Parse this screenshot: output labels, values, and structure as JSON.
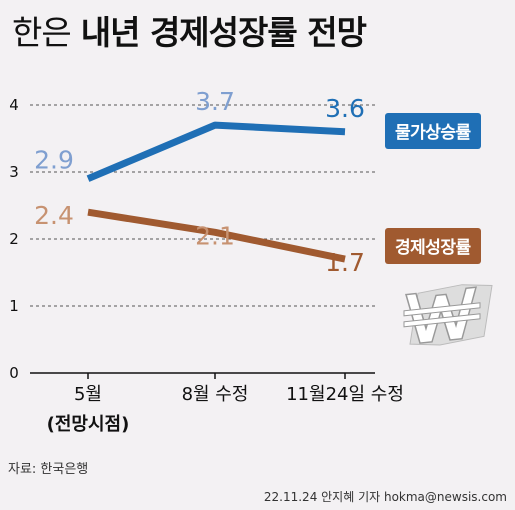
{
  "header": {
    "title_part1": "한은",
    "title_part2": "내년 경제성장률 전망"
  },
  "chart_data": {
    "type": "line",
    "categories": [
      "5월",
      "8월 수정",
      "11월24일 수정"
    ],
    "category_sublabels": [
      "(전망시점)",
      "",
      ""
    ],
    "ylim": [
      0,
      4
    ],
    "yticks": [
      0,
      1,
      2,
      3,
      4
    ],
    "grid": true,
    "series": [
      {
        "name": "물가상승률",
        "values": [
          2.9,
          3.7,
          3.6
        ],
        "labels": [
          "2.9",
          "3.7",
          "3.6"
        ],
        "color": "#1f6fb5",
        "label_colors": [
          "#7f9fd0",
          "#7f9fd0",
          "#1f6fb5"
        ]
      },
      {
        "name": "경제성장률",
        "values": [
          2.4,
          2.1,
          1.7
        ],
        "labels": [
          "2.4",
          "2.1",
          "1.7"
        ],
        "color": "#a05a30",
        "label_colors": [
          "#c79271",
          "#c79271",
          "#a05a30"
        ]
      }
    ],
    "legend_placement": "right"
  },
  "source": "자료: 한국은행",
  "credit": "22.11.24 안지혜 기자 hokma@newsis.com"
}
